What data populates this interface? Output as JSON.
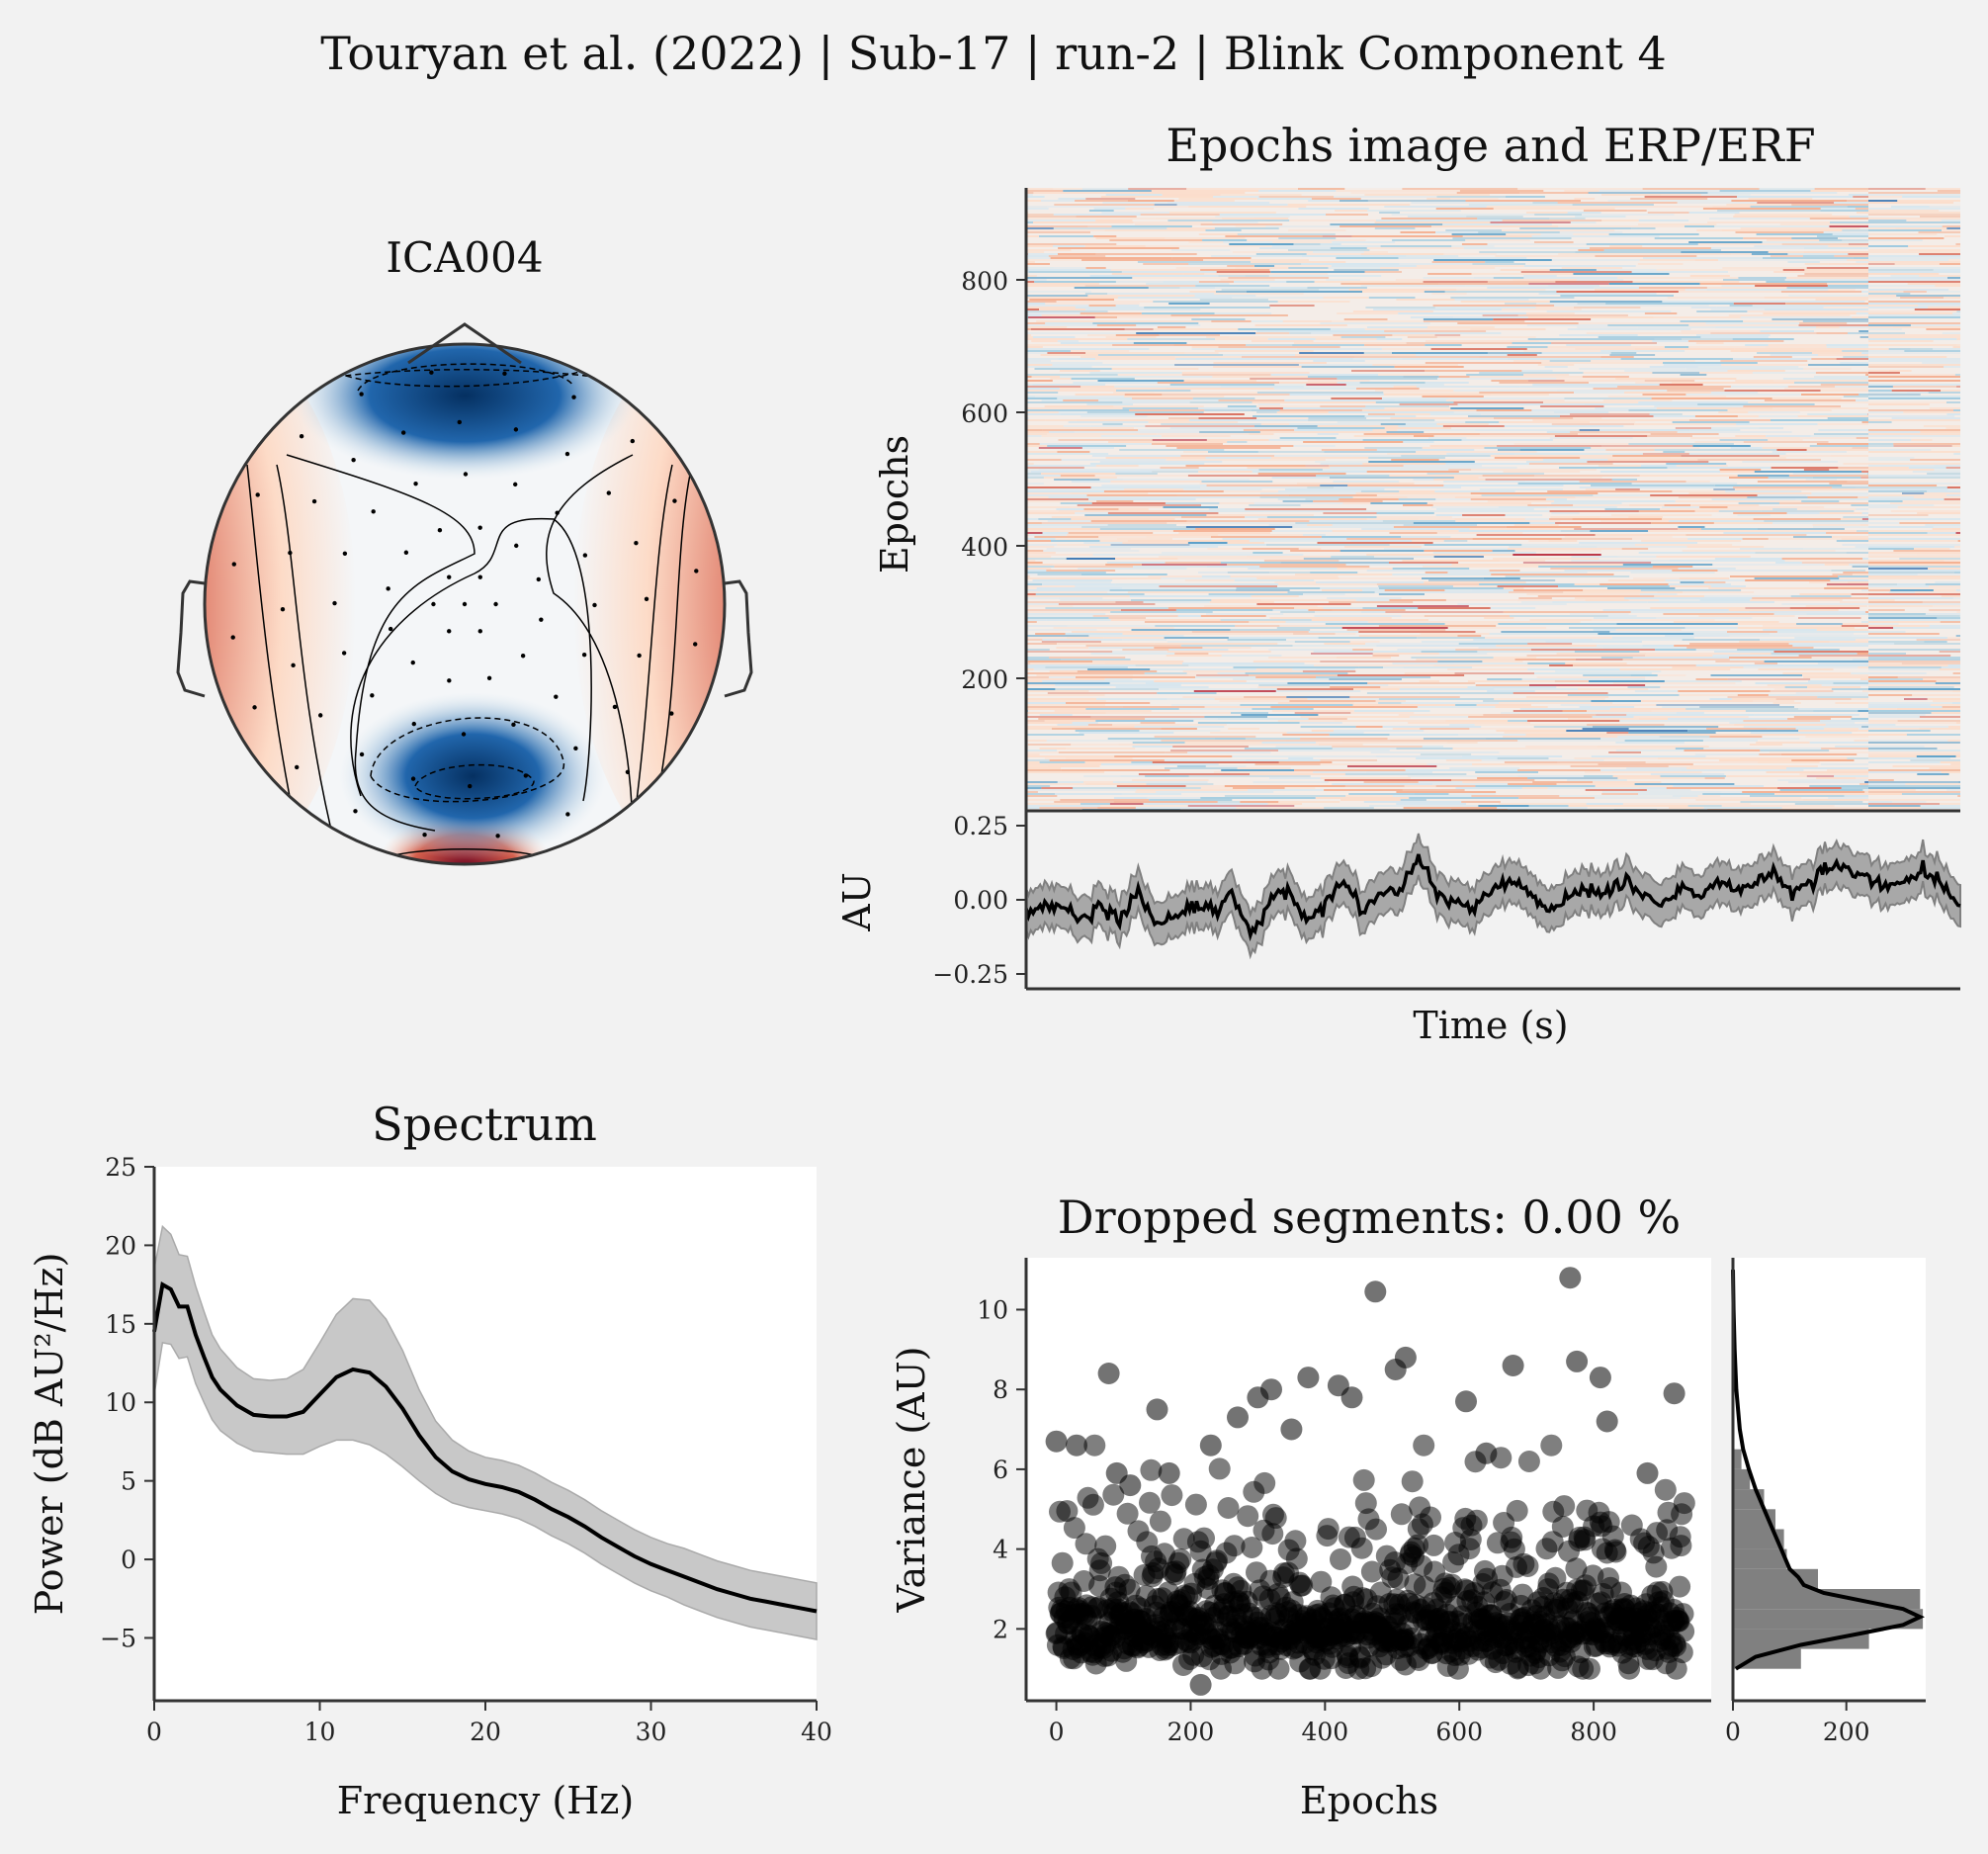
{
  "figure": {
    "suptitle": "Touryan et al. (2022) | Sub-17 | run-2 | Blink Component 4"
  },
  "colors": {
    "background": "#f2f2f2",
    "negative": "#053061",
    "positive": "#67001f",
    "neutral": "#f7f7f7",
    "trace": "#000000",
    "band": "#aaaaaa"
  },
  "topomap": {
    "title": "ICA004",
    "colormap": "RdBu_r",
    "icon": "head-outline-icon"
  },
  "epochs_image": {
    "title": "Epochs image and ERP/ERF",
    "ylabel": "Epochs",
    "yticks": [
      "200",
      "400",
      "600",
      "800"
    ],
    "n_epochs": 936
  },
  "erp": {
    "ylabel": "AU",
    "xlabel": "Time (s)",
    "yticks": [
      "−0.25",
      "0.00",
      "0.25"
    ]
  },
  "spectrum": {
    "title": "Spectrum",
    "xlabel": "Frequency (Hz)",
    "ylabel": "Power (dB AU²/Hz)",
    "xticks": [
      "0",
      "10",
      "20",
      "30",
      "40"
    ],
    "yticks": [
      "−5",
      "0",
      "5",
      "10",
      "15",
      "20",
      "25"
    ]
  },
  "dropped": {
    "title": "Dropped segments: 0.00 %",
    "xlabel": "Epochs",
    "ylabel": "Variance (AU)",
    "xticks": [
      "0",
      "200",
      "400",
      "600",
      "800"
    ],
    "yticks": [
      "2",
      "4",
      "6",
      "8",
      "10"
    ],
    "hist_xticks": [
      "0",
      "200"
    ]
  },
  "chart_data": [
    {
      "type": "line",
      "id": "spectrum",
      "x": [
        0,
        0.5,
        1,
        1.5,
        2,
        2.5,
        3,
        3.5,
        4,
        5,
        6,
        7,
        8,
        9,
        10,
        11,
        12,
        13,
        14,
        15,
        16,
        17,
        18,
        19,
        20,
        21,
        22,
        23,
        24,
        25,
        26,
        27,
        28,
        29,
        30,
        31,
        32,
        33,
        34,
        35,
        36,
        37,
        38,
        39,
        40
      ],
      "y": [
        14.5,
        17.5,
        17.2,
        16.1,
        16.1,
        14.3,
        12.9,
        11.6,
        10.8,
        9.8,
        9.2,
        9.1,
        9.1,
        9.4,
        10.5,
        11.6,
        12.1,
        11.9,
        11.0,
        9.6,
        7.9,
        6.5,
        5.6,
        5.1,
        4.8,
        4.6,
        4.3,
        3.8,
        3.2,
        2.7,
        2.1,
        1.4,
        0.8,
        0.2,
        -0.3,
        -0.7,
        -1.1,
        -1.5,
        -1.9,
        -2.2,
        -2.5,
        -2.7,
        -2.9,
        -3.1,
        -3.3
      ],
      "band": [
        4.0,
        3.7,
        3.5,
        3.3,
        3.2,
        3.1,
        2.9,
        2.7,
        2.6,
        2.4,
        2.3,
        2.3,
        2.4,
        2.7,
        3.3,
        4.0,
        4.5,
        4.6,
        4.3,
        3.7,
        2.9,
        2.3,
        2.0,
        1.8,
        1.7,
        1.7,
        1.7,
        1.7,
        1.7,
        1.7,
        1.7,
        1.7,
        1.7,
        1.7,
        1.7,
        1.7,
        1.8,
        1.8,
        1.8,
        1.8,
        1.8,
        1.8,
        1.8,
        1.8,
        1.8
      ],
      "xlim": [
        0,
        40
      ],
      "ylim": [
        -9,
        25
      ]
    },
    {
      "type": "line",
      "id": "erp",
      "x": [
        0.0,
        0.02,
        0.04,
        0.06,
        0.08,
        0.1,
        0.12,
        0.14,
        0.16,
        0.18,
        0.2,
        0.22,
        0.24,
        0.26,
        0.28,
        0.3,
        0.32,
        0.34,
        0.36,
        0.38,
        0.4,
        0.42,
        0.44,
        0.46,
        0.48,
        0.5,
        0.52,
        0.54,
        0.56,
        0.58,
        0.6,
        0.62,
        0.64,
        0.66,
        0.68,
        0.7,
        0.72,
        0.74,
        0.76,
        0.78,
        0.8,
        0.82,
        0.84,
        0.86,
        0.88,
        0.9,
        0.92,
        0.94,
        0.96,
        0.98,
        1.0
      ],
      "y": [
        -0.04,
        -0.02,
        -0.03,
        -0.06,
        -0.02,
        -0.07,
        0.03,
        -0.08,
        -0.05,
        -0.02,
        -0.05,
        0.02,
        -0.12,
        -0.01,
        0.03,
        -0.07,
        -0.01,
        0.06,
        -0.04,
        0.02,
        0.04,
        0.14,
        0.02,
        -0.01,
        -0.03,
        0.03,
        0.06,
        0.02,
        -0.04,
        0.0,
        0.04,
        0.02,
        0.07,
        0.02,
        -0.02,
        0.04,
        0.01,
        0.05,
        0.03,
        0.06,
        0.09,
        0.02,
        0.07,
        0.12,
        0.1,
        0.08,
        0.03,
        0.06,
        0.1,
        0.05,
        -0.02
      ],
      "band": 0.07,
      "ylim": [
        -0.3,
        0.3
      ]
    },
    {
      "type": "scatter",
      "id": "variance",
      "n_epochs": 936,
      "xlim": [
        -45,
        975
      ],
      "ylim": [
        0.2,
        11.3
      ],
      "bulk_range": [
        1,
        4
      ],
      "outliers": [
        [
          0,
          6.7
        ],
        [
          30,
          6.6
        ],
        [
          78,
          8.4
        ],
        [
          90,
          5.9
        ],
        [
          150,
          7.5
        ],
        [
          168,
          5.9
        ],
        [
          270,
          7.3
        ],
        [
          300,
          7.8
        ],
        [
          320,
          8.0
        ],
        [
          375,
          8.3
        ],
        [
          420,
          8.1
        ],
        [
          440,
          7.8
        ],
        [
          475,
          10.45
        ],
        [
          505,
          8.5
        ],
        [
          520,
          8.8
        ],
        [
          610,
          7.7
        ],
        [
          640,
          6.4
        ],
        [
          680,
          8.6
        ],
        [
          765,
          10.8
        ],
        [
          775,
          8.7
        ],
        [
          810,
          8.3
        ],
        [
          820,
          7.2
        ],
        [
          880,
          5.9
        ],
        [
          920,
          7.9
        ],
        [
          215,
          0.6
        ],
        [
          110,
          5.6
        ],
        [
          230,
          6.6
        ],
        [
          350,
          7.0
        ]
      ]
    },
    {
      "type": "bar",
      "id": "variance_histogram",
      "orientation": "horizontal",
      "bin_edges": [
        1.0,
        1.5,
        2.0,
        2.5,
        3.0,
        3.5,
        4.0,
        4.5,
        5.0,
        5.5,
        6.0,
        6.5
      ],
      "counts": [
        120,
        240,
        335,
        330,
        150,
        95,
        90,
        75,
        55,
        30,
        15
      ],
      "density_curve": [
        [
          1.0,
          5
        ],
        [
          1.3,
          40
        ],
        [
          1.6,
          120
        ],
        [
          1.9,
          230
        ],
        [
          2.1,
          300
        ],
        [
          2.3,
          330
        ],
        [
          2.5,
          300
        ],
        [
          2.7,
          230
        ],
        [
          2.9,
          160
        ],
        [
          3.1,
          125
        ],
        [
          3.3,
          115
        ],
        [
          3.5,
          100
        ],
        [
          4.0,
          85
        ],
        [
          4.5,
          70
        ],
        [
          5.0,
          55
        ],
        [
          5.5,
          40
        ],
        [
          6.0,
          28
        ],
        [
          6.5,
          18
        ],
        [
          7.0,
          12
        ],
        [
          8.0,
          6
        ],
        [
          9.0,
          3
        ],
        [
          10.0,
          1
        ],
        [
          11.0,
          0
        ]
      ],
      "xlim": [
        0,
        340
      ]
    }
  ]
}
